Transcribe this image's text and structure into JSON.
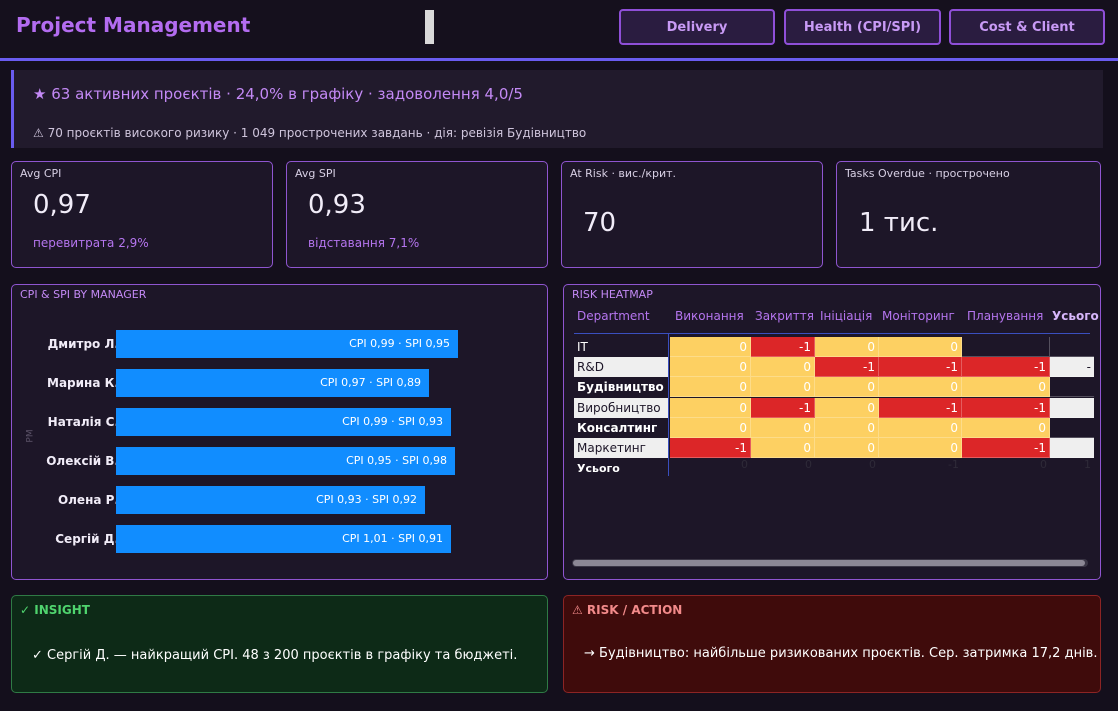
{
  "header": {
    "title": "Project Management",
    "tabs": [
      {
        "label": "Delivery"
      },
      {
        "label": "Health (CPI/SPI)"
      },
      {
        "label": "Cost & Client"
      }
    ]
  },
  "banner": {
    "headline": "★ 63 активних проєктів · 24,0% в графіку · задоволення 4,0/5",
    "subline": "⚠ 70 проєктів високого ризику · 1 049 прострочених завдань · дія: ревізія Будівництво"
  },
  "kpis": [
    {
      "label": "Avg CPI",
      "value": "0,97",
      "sub": "перевитрата 2,9%"
    },
    {
      "label": "Avg SPI",
      "value": "0,93",
      "sub": "відставання 7,1%"
    },
    {
      "label": "At Risk · вис./крит.",
      "value": "70",
      "sub": ""
    },
    {
      "label": "Tasks Overdue · прострочено",
      "value": "1 тис.",
      "sub": ""
    }
  ],
  "manager_chart": {
    "title": "CPI & SPI BY MANAGER",
    "y_axis_title": "PM"
  },
  "chart_data": {
    "type": "bar",
    "orientation": "horizontal",
    "title": "CPI & SPI BY MANAGER",
    "categories": [
      "Дмитро Л.",
      "Марина К.",
      "Наталія С.",
      "Олексій В.",
      "Олена Р.",
      "Сергій Д."
    ],
    "series": [
      {
        "name": "CPI",
        "values": [
          0.99,
          0.97,
          0.99,
          0.95,
          0.93,
          1.01
        ]
      },
      {
        "name": "SPI",
        "values": [
          0.95,
          0.89,
          0.93,
          0.98,
          0.92,
          0.91
        ]
      }
    ],
    "data_labels": [
      "CPI 0,99 · SPI 0,95",
      "CPI 0,97 · SPI 0,89",
      "CPI 0,99 · SPI 0,93",
      "CPI 0,95 · SPI 0,98",
      "CPI 0,93 · SPI 0,92",
      "CPI 1,01 · SPI 0,91"
    ],
    "bar_values": [
      0.97,
      0.93,
      0.96,
      0.965,
      0.925,
      0.96
    ],
    "xlim": [
      0.5,
      1.0
    ]
  },
  "heatmap": {
    "title": "RISK HEATMAP",
    "corner_label": "Department",
    "columns": [
      "Виконання",
      "Закриття",
      "Ініціація",
      "Моніторинг",
      "Планування",
      "Усього"
    ],
    "rows": [
      {
        "name": "IT",
        "cells": [
          "0",
          "-1",
          "0",
          "0",
          "",
          ""
        ]
      },
      {
        "name": "R&D",
        "cells": [
          "0",
          "0",
          "-1",
          "-1",
          "-1",
          "-"
        ]
      },
      {
        "name": "Будівництво",
        "cells": [
          "0",
          "0",
          "0",
          "0",
          "0",
          ""
        ]
      },
      {
        "name": "Виробництво",
        "cells": [
          "0",
          "-1",
          "0",
          "-1",
          "-1",
          ""
        ]
      },
      {
        "name": "Консалтинг",
        "cells": [
          "0",
          "0",
          "0",
          "0",
          "0",
          ""
        ]
      },
      {
        "name": "Маркетинг",
        "cells": [
          "-1",
          "0",
          "0",
          "0",
          "-1",
          ""
        ]
      }
    ],
    "total_label": "Усього",
    "totals": [
      "0",
      "0",
      "0",
      "-1",
      "0",
      "1"
    ],
    "colors": {
      "yellow": "#fdd062",
      "red": "#dc2628",
      "light": "#efefef"
    }
  },
  "insight": {
    "title": "✓ INSIGHT",
    "text": "✓ Сергій Д. — найкращий CPI. 48 з 200 проєктів в графіку та бюджеті."
  },
  "risk": {
    "title": "⚠ RISK / ACTION",
    "text": "→ Будівництво: найбільше ризикованих проєктів. Сер. затримка 17,2 днів."
  }
}
